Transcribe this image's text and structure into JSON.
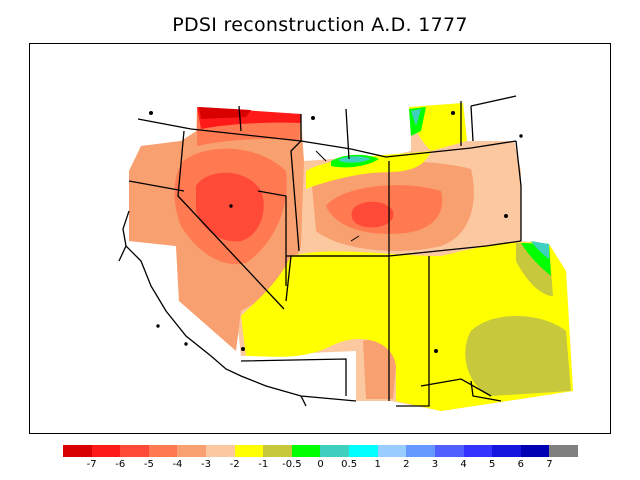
{
  "title": "PDSI reconstruction A.D. 1777",
  "palette": {
    "d7": "#d90000",
    "d6": "#ff1a1a",
    "d5": "#ff4a38",
    "d4": "#ff7a50",
    "d3": "#f9a070",
    "d2": "#fcc8a0",
    "d1": "#ffff00",
    "d05": "#c8c83c",
    "n0": "#00ff00",
    "p05": "#40d0c0",
    "p1": "#00ffff",
    "p2": "#99ccff",
    "p3": "#6699ff",
    "p4": "#4f60ff",
    "p5": "#3333ff",
    "p6": "#1515e0",
    "p7": "#0000b4",
    "over": "#808080"
  },
  "legend": {
    "colors": [
      "#d90000",
      "#ff1a1a",
      "#ff4a38",
      "#ff7a50",
      "#f9a070",
      "#fcc8a0",
      "#ffff00",
      "#c8c83c",
      "#00ff00",
      "#40d0c0",
      "#00ffff",
      "#99ccff",
      "#6699ff",
      "#4f60ff",
      "#3333ff",
      "#1515e0",
      "#0000b4",
      "#808080"
    ],
    "ticks": [
      "-7",
      "-6",
      "-5",
      "-4",
      "-3",
      "-2",
      "-1",
      "-0.5",
      "0",
      "0.5",
      "1",
      "2",
      "3",
      "4",
      "5",
      "6",
      "7"
    ]
  }
}
